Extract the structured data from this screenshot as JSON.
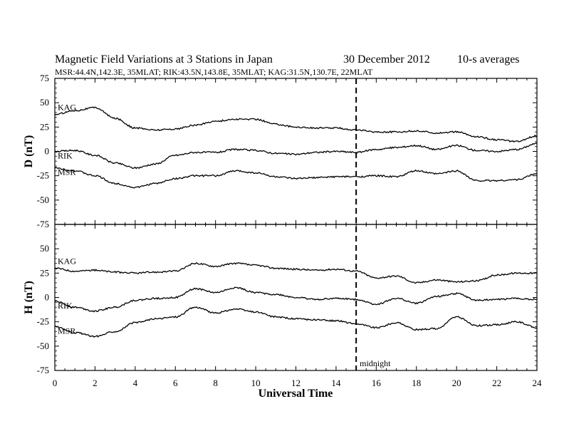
{
  "header": {
    "title": "Magnetic Field Variations at 3 Stations in Japan",
    "date": "30 December 2012",
    "averaging": "10-s averages",
    "stations_info": "MSR:44.4N,142.3E, 35MLAT;  RIK:43.5N,143.8E, 35MLAT;  KAG:31.5N,130.7E, 22MLAT"
  },
  "chart_data": {
    "type": "line",
    "xlabel": "Universal Time",
    "xlim": [
      0,
      24
    ],
    "x_ticks": [
      0,
      2,
      4,
      6,
      8,
      10,
      12,
      14,
      16,
      18,
      20,
      22,
      24
    ],
    "annotation": {
      "x": 15,
      "label": "midnight",
      "style": "dashed vertical line"
    },
    "panels": [
      {
        "ylabel": "D (nT)",
        "ylim": [
          -75,
          75
        ],
        "y_ticks": [
          75,
          50,
          25,
          0,
          -25,
          -50,
          -75
        ],
        "series": [
          {
            "name": "KAG",
            "x": [
              0,
              1,
              2,
              3,
              4,
              5,
              6,
              7,
              8,
              9,
              10,
              11,
              12,
              13,
              14,
              15,
              16,
              17,
              18,
              19,
              20,
              21,
              22,
              23,
              24
            ],
            "values": [
              38,
              42,
              45,
              34,
              24,
              22,
              23,
              27,
              31,
              33,
              33,
              28,
              25,
              24,
              24,
              22,
              20,
              20,
              21,
              19,
              20,
              15,
              12,
              10,
              16
            ]
          },
          {
            "name": "RIK",
            "x": [
              0,
              1,
              2,
              3,
              4,
              5,
              6,
              7,
              8,
              9,
              10,
              11,
              12,
              13,
              14,
              15,
              16,
              17,
              18,
              19,
              20,
              21,
              22,
              23,
              24
            ],
            "values": [
              0,
              1,
              -4,
              -12,
              -17,
              -13,
              -4,
              -1,
              -1,
              2,
              1,
              -2,
              -3,
              -1,
              0,
              -1,
              2,
              4,
              6,
              2,
              6,
              1,
              0,
              2,
              8
            ]
          },
          {
            "name": "MSR",
            "x": [
              0,
              1,
              2,
              3,
              4,
              5,
              6,
              7,
              8,
              9,
              10,
              11,
              12,
              13,
              14,
              15,
              16,
              17,
              18,
              19,
              20,
              21,
              22,
              23,
              24
            ],
            "values": [
              -17,
              -20,
              -25,
              -33,
              -37,
              -33,
              -28,
              -25,
              -25,
              -20,
              -22,
              -26,
              -28,
              -27,
              -26,
              -26,
              -25,
              -26,
              -20,
              -23,
              -20,
              -30,
              -30,
              -29,
              -23
            ]
          }
        ]
      },
      {
        "ylabel": "H (nT)",
        "ylim": [
          -75,
          75
        ],
        "y_ticks": [
          50,
          25,
          0,
          -25,
          -50,
          -75
        ],
        "series": [
          {
            "name": "KAG",
            "x": [
              0,
              1,
              2,
              3,
              4,
              5,
              6,
              7,
              8,
              9,
              10,
              11,
              12,
              13,
              14,
              15,
              16,
              17,
              18,
              19,
              20,
              21,
              22,
              23,
              24
            ],
            "values": [
              30,
              27,
              28,
              26,
              25,
              26,
              27,
              35,
              32,
              35,
              33,
              30,
              29,
              28,
              29,
              27,
              20,
              22,
              15,
              18,
              16,
              17,
              23,
              25,
              25
            ]
          },
          {
            "name": "RIK",
            "x": [
              0,
              1,
              2,
              3,
              4,
              5,
              6,
              7,
              8,
              9,
              10,
              11,
              12,
              13,
              14,
              15,
              16,
              17,
              18,
              19,
              20,
              21,
              22,
              23,
              24
            ],
            "values": [
              -4,
              -10,
              -14,
              -10,
              -3,
              -1,
              0,
              9,
              5,
              10,
              5,
              3,
              0,
              -2,
              -1,
              -2,
              -7,
              -1,
              -6,
              1,
              4,
              -3,
              -2,
              -1,
              -2
            ]
          },
          {
            "name": "MSR",
            "x": [
              0,
              1,
              2,
              3,
              4,
              5,
              6,
              7,
              8,
              9,
              10,
              11,
              12,
              13,
              14,
              15,
              16,
              17,
              18,
              19,
              20,
              21,
              22,
              23,
              24
            ],
            "values": [
              -30,
              -36,
              -40,
              -35,
              -26,
              -22,
              -20,
              -10,
              -16,
              -12,
              -15,
              -20,
              -22,
              -23,
              -24,
              -27,
              -31,
              -26,
              -33,
              -32,
              -20,
              -29,
              -28,
              -25,
              -31
            ]
          }
        ]
      }
    ]
  }
}
